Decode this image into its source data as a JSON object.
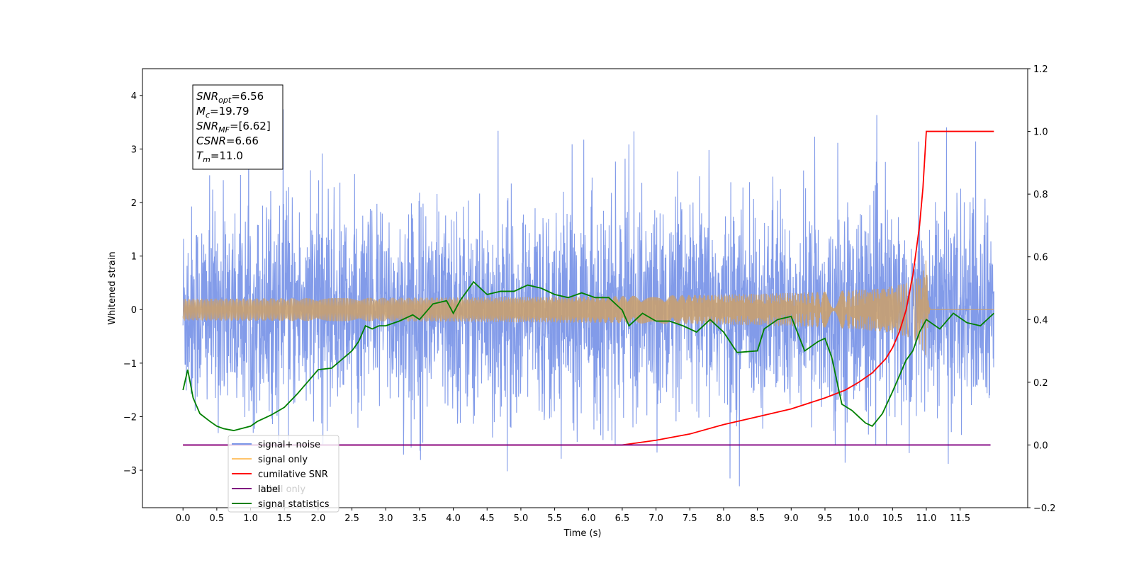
{
  "chart_data": {
    "type": "line",
    "xlabel": "Time (s)",
    "ylabel": "Whitened strain",
    "x_ticks": [
      "0.0",
      "0.5",
      "1.0",
      "1.5",
      "2.0",
      "2.5",
      "3.0",
      "3.5",
      "4.0",
      "4.5",
      "5.0",
      "5.5",
      "6.0",
      "6.5",
      "7.0",
      "7.5",
      "8.0",
      "8.5",
      "9.0",
      "9.5",
      "10.0",
      "10.5",
      "11.0",
      "11.5"
    ],
    "xlim": [
      -0.6,
      12.5
    ],
    "ylim_left": [
      -3.7,
      4.5
    ],
    "ylim_right": [
      -0.2,
      1.2
    ],
    "y_ticks_left": [
      "−3",
      "−2",
      "−1",
      "0",
      "1",
      "2",
      "3",
      "4"
    ],
    "y_ticks_right": [
      "−0.2",
      "0.0",
      "0.2",
      "0.4",
      "0.6",
      "0.8",
      "1.0",
      "1.2"
    ],
    "annotation": [
      {
        "base": "SNR",
        "sub": "opt",
        "rest": "=6.56"
      },
      {
        "base": "M",
        "sub": "c",
        "rest": "=19.79"
      },
      {
        "base": "SNR",
        "sub": "MF",
        "rest": "=[6.62]"
      },
      {
        "base": "CSNR",
        "sub": "",
        "rest": "=6.66"
      },
      {
        "base": "T",
        "sub": "m",
        "rest": "=11.0"
      }
    ],
    "legend": [
      {
        "label": "signal+ noise",
        "color": "#7b96e8"
      },
      {
        "label": "signal only",
        "color": "#ffc46b"
      },
      {
        "label": "cumilative SNR",
        "color": "#ff0000"
      },
      {
        "label": "label",
        "color": "#800080"
      },
      {
        "label": "signal statistics",
        "color": "#008000"
      }
    ],
    "legend_hidden_text": [
      "label only"
    ],
    "series": [
      {
        "name": "signal+ noise",
        "axis": "left",
        "color": "#7b96e8",
        "x_range": [
          0.0,
          12.0
        ],
        "y_range_approx": [
          -3.3,
          4.1
        ],
        "std_approx": 0.95
      },
      {
        "name": "signal only",
        "axis": "left",
        "color": "#c8a070",
        "x_range": [
          0.0,
          12.0
        ],
        "merger_time": 11.0,
        "peak_amplitude": 1.25
      },
      {
        "name": "cumilative SNR",
        "axis": "right",
        "color": "#ff0000",
        "points": [
          [
            0.0,
            0.0
          ],
          [
            6.0,
            0.0
          ],
          [
            6.5,
            0.0
          ],
          [
            7.0,
            0.015
          ],
          [
            7.5,
            0.035
          ],
          [
            8.0,
            0.065
          ],
          [
            8.5,
            0.09
          ],
          [
            9.0,
            0.115
          ],
          [
            9.5,
            0.15
          ],
          [
            9.8,
            0.175
          ],
          [
            10.0,
            0.2
          ],
          [
            10.2,
            0.23
          ],
          [
            10.4,
            0.275
          ],
          [
            10.5,
            0.31
          ],
          [
            10.6,
            0.36
          ],
          [
            10.7,
            0.43
          ],
          [
            10.8,
            0.54
          ],
          [
            10.9,
            0.7
          ],
          [
            10.95,
            0.82
          ],
          [
            11.0,
            1.0
          ],
          [
            12.0,
            1.0
          ]
        ]
      },
      {
        "name": "label",
        "axis": "right",
        "color": "#800080",
        "points": [
          [
            0.0,
            0.0
          ],
          [
            11.95,
            0.0
          ]
        ]
      },
      {
        "name": "signal statistics",
        "axis": "right",
        "color": "#008000",
        "points": [
          [
            0.0,
            0.175
          ],
          [
            0.07,
            0.24
          ],
          [
            0.15,
            0.15
          ],
          [
            0.25,
            0.1
          ],
          [
            0.4,
            0.075
          ],
          [
            0.5,
            0.06
          ],
          [
            0.6,
            0.052
          ],
          [
            0.75,
            0.046
          ],
          [
            1.0,
            0.06
          ],
          [
            1.1,
            0.075
          ],
          [
            1.3,
            0.095
          ],
          [
            1.5,
            0.12
          ],
          [
            1.7,
            0.165
          ],
          [
            1.8,
            0.19
          ],
          [
            2.0,
            0.24
          ],
          [
            2.2,
            0.245
          ],
          [
            2.5,
            0.3
          ],
          [
            2.6,
            0.33
          ],
          [
            2.7,
            0.38
          ],
          [
            2.8,
            0.37
          ],
          [
            2.9,
            0.38
          ],
          [
            3.0,
            0.38
          ],
          [
            3.2,
            0.395
          ],
          [
            3.4,
            0.415
          ],
          [
            3.5,
            0.4
          ],
          [
            3.7,
            0.45
          ],
          [
            3.9,
            0.46
          ],
          [
            4.0,
            0.42
          ],
          [
            4.1,
            0.46
          ],
          [
            4.3,
            0.52
          ],
          [
            4.5,
            0.48
          ],
          [
            4.7,
            0.49
          ],
          [
            4.9,
            0.49
          ],
          [
            5.1,
            0.51
          ],
          [
            5.3,
            0.5
          ],
          [
            5.5,
            0.48
          ],
          [
            5.7,
            0.47
          ],
          [
            5.9,
            0.485
          ],
          [
            6.1,
            0.47
          ],
          [
            6.3,
            0.47
          ],
          [
            6.5,
            0.43
          ],
          [
            6.6,
            0.38
          ],
          [
            6.8,
            0.42
          ],
          [
            7.0,
            0.395
          ],
          [
            7.2,
            0.395
          ],
          [
            7.4,
            0.38
          ],
          [
            7.6,
            0.36
          ],
          [
            7.8,
            0.4
          ],
          [
            8.0,
            0.36
          ],
          [
            8.2,
            0.295
          ],
          [
            8.5,
            0.3
          ],
          [
            8.6,
            0.37
          ],
          [
            8.8,
            0.4
          ],
          [
            9.0,
            0.41
          ],
          [
            9.2,
            0.3
          ],
          [
            9.4,
            0.33
          ],
          [
            9.5,
            0.34
          ],
          [
            9.6,
            0.28
          ],
          [
            9.75,
            0.13
          ],
          [
            9.9,
            0.11
          ],
          [
            10.0,
            0.09
          ],
          [
            10.1,
            0.07
          ],
          [
            10.2,
            0.06
          ],
          [
            10.35,
            0.1
          ],
          [
            10.5,
            0.17
          ],
          [
            10.7,
            0.27
          ],
          [
            10.8,
            0.3
          ],
          [
            10.9,
            0.36
          ],
          [
            11.0,
            0.4
          ],
          [
            11.2,
            0.37
          ],
          [
            11.4,
            0.42
          ],
          [
            11.6,
            0.39
          ],
          [
            11.8,
            0.38
          ],
          [
            12.0,
            0.42
          ]
        ]
      }
    ]
  }
}
